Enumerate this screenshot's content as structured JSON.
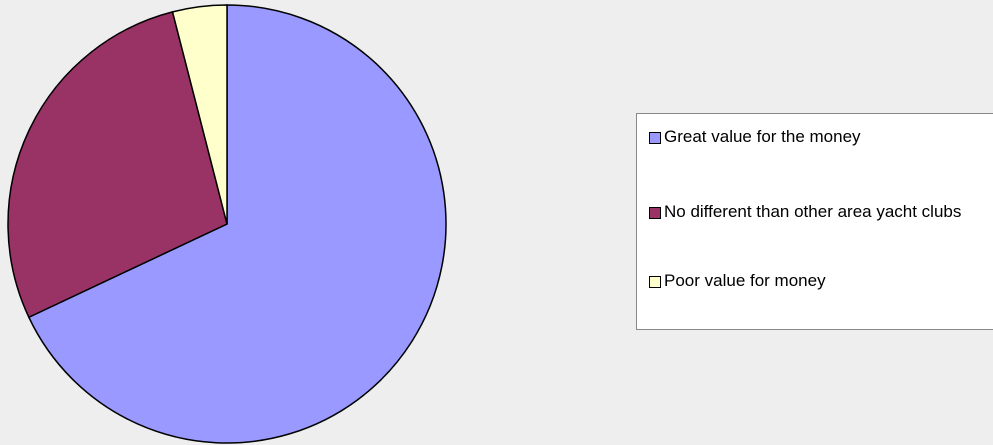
{
  "chart_data": {
    "type": "pie",
    "categories": [
      "Great value for the money",
      "No different than other area yacht clubs",
      "Poor value for money"
    ],
    "values": [
      68,
      28,
      4
    ],
    "colors": [
      "#9999ff",
      "#993366",
      "#ffffcc"
    ],
    "legend": "right"
  }
}
